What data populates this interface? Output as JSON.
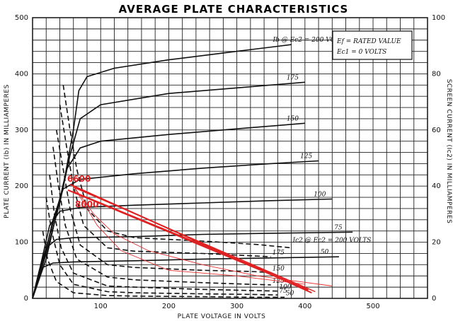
{
  "chart_data": {
    "type": "line",
    "title": "AVERAGE PLATE CHARACTERISTICS",
    "xlabel": "PLATE VOLTAGE IN VOLTS",
    "ylabel_left": "PLATE CURRENT (Ib) IN MILLIAMPERES",
    "ylabel_right": "SCREEN CURRENT (Ic2) IN MILLIAMPERES",
    "xlim": [
      0,
      580
    ],
    "ylim_left": [
      0,
      500
    ],
    "ylim_right": [
      0,
      100
    ],
    "x_ticks": [
      "100",
      "200",
      "300",
      "400",
      "500"
    ],
    "y_ticks_left": [
      "0",
      "100",
      "200",
      "300",
      "400",
      "500"
    ],
    "y_ticks_right": [
      "0",
      "20",
      "40",
      "60",
      "80",
      "100"
    ],
    "legend": [
      "Ef = RATED VALUE",
      "Ec1 = 0 VOLTS"
    ],
    "plate_curves": [
      {
        "label": "Ib @ Ec2 = 200 VOLTS",
        "points": [
          [
            0,
            0
          ],
          [
            20,
            90
          ],
          [
            45,
            200
          ],
          [
            60,
            300
          ],
          [
            68,
            370
          ],
          [
            80,
            395
          ],
          [
            120,
            410
          ],
          [
            200,
            425
          ],
          [
            300,
            440
          ],
          [
            380,
            452
          ]
        ]
      },
      {
        "label": "175",
        "points": [
          [
            0,
            0
          ],
          [
            20,
            80
          ],
          [
            40,
            170
          ],
          [
            55,
            255
          ],
          [
            70,
            320
          ],
          [
            100,
            345
          ],
          [
            200,
            365
          ],
          [
            300,
            375
          ],
          [
            400,
            385
          ]
        ]
      },
      {
        "label": "150",
        "points": [
          [
            0,
            0
          ],
          [
            20,
            70
          ],
          [
            35,
            150
          ],
          [
            50,
            230
          ],
          [
            70,
            268
          ],
          [
            100,
            280
          ],
          [
            200,
            292
          ],
          [
            300,
            302
          ],
          [
            400,
            312
          ]
        ]
      },
      {
        "label": "125",
        "points": [
          [
            0,
            0
          ],
          [
            15,
            60
          ],
          [
            30,
            140
          ],
          [
            45,
            195
          ],
          [
            70,
            212
          ],
          [
            150,
            222
          ],
          [
            250,
            232
          ],
          [
            350,
            240
          ],
          [
            420,
            245
          ]
        ]
      },
      {
        "label": "100",
        "points": [
          [
            0,
            0
          ],
          [
            12,
            60
          ],
          [
            25,
            130
          ],
          [
            40,
            155
          ],
          [
            70,
            162
          ],
          [
            150,
            166
          ],
          [
            250,
            170
          ],
          [
            350,
            174
          ],
          [
            440,
            177
          ]
        ]
      },
      {
        "label": "75",
        "points": [
          [
            0,
            0
          ],
          [
            10,
            50
          ],
          [
            20,
            90
          ],
          [
            35,
            105
          ],
          [
            60,
            108
          ],
          [
            150,
            110
          ],
          [
            250,
            114
          ],
          [
            350,
            116
          ],
          [
            470,
            118
          ]
        ]
      },
      {
        "label": "50",
        "points": [
          [
            0,
            0
          ],
          [
            8,
            35
          ],
          [
            15,
            55
          ],
          [
            30,
            63
          ],
          [
            60,
            65
          ],
          [
            150,
            67
          ],
          [
            250,
            70
          ],
          [
            350,
            72
          ],
          [
            450,
            74
          ]
        ]
      }
    ],
    "screen_curves": [
      {
        "label": "Ic2 @ Ec2 = 200 VOLTS",
        "points": [
          [
            45,
            380
          ],
          [
            55,
            300
          ],
          [
            65,
            230
          ],
          [
            80,
            160
          ],
          [
            110,
            120
          ],
          [
            150,
            108
          ],
          [
            250,
            102
          ],
          [
            330,
            96
          ],
          [
            380,
            90
          ]
        ]
      },
      {
        "label": "175",
        "points": [
          [
            40,
            345
          ],
          [
            50,
            270
          ],
          [
            60,
            200
          ],
          [
            75,
            130
          ],
          [
            110,
            90
          ],
          [
            150,
            84
          ],
          [
            250,
            80
          ],
          [
            320,
            76
          ],
          [
            350,
            74
          ]
        ]
      },
      {
        "label": "150",
        "points": [
          [
            35,
            300
          ],
          [
            45,
            230
          ],
          [
            55,
            160
          ],
          [
            70,
            95
          ],
          [
            110,
            60
          ],
          [
            150,
            55
          ],
          [
            250,
            50
          ],
          [
            320,
            48
          ],
          [
            350,
            46
          ]
        ]
      },
      {
        "label": "125",
        "points": [
          [
            30,
            270
          ],
          [
            38,
            200
          ],
          [
            48,
            130
          ],
          [
            65,
            70
          ],
          [
            110,
            38
          ],
          [
            150,
            33
          ],
          [
            250,
            28
          ],
          [
            320,
            25
          ],
          [
            350,
            24
          ]
        ]
      },
      {
        "label": "100",
        "points": [
          [
            25,
            220
          ],
          [
            32,
            150
          ],
          [
            42,
            90
          ],
          [
            60,
            45
          ],
          [
            110,
            22
          ],
          [
            150,
            20
          ],
          [
            250,
            16
          ],
          [
            320,
            14
          ],
          [
            360,
            13
          ]
        ]
      },
      {
        "label": "75",
        "points": [
          [
            20,
            180
          ],
          [
            28,
            120
          ],
          [
            40,
            60
          ],
          [
            60,
            25
          ],
          [
            110,
            12
          ],
          [
            150,
            10
          ],
          [
            250,
            8
          ],
          [
            320,
            7
          ],
          [
            360,
            6
          ]
        ]
      },
      {
        "label": "50",
        "points": [
          [
            15,
            120
          ],
          [
            22,
            70
          ],
          [
            35,
            30
          ],
          [
            60,
            10
          ],
          [
            110,
            5
          ],
          [
            150,
            4
          ],
          [
            250,
            3
          ],
          [
            320,
            2
          ],
          [
            370,
            2
          ]
        ]
      }
    ],
    "load_lines": [
      {
        "label": "6600",
        "points": [
          [
            55,
            203
          ],
          [
            410,
            10
          ]
        ]
      },
      {
        "label": "8000",
        "points": [
          [
            52,
            193
          ],
          [
            405,
            15
          ]
        ]
      }
    ],
    "extra_load_lines": [
      {
        "points": [
          [
            60,
            190
          ],
          [
            400,
            20
          ]
        ]
      },
      {
        "points": [
          [
            60,
            198
          ],
          [
            415,
            12
          ]
        ]
      }
    ],
    "trace_curves": [
      {
        "points": [
          [
            60,
            200
          ],
          [
            90,
            150
          ],
          [
            120,
            115
          ],
          [
            170,
            85
          ],
          [
            250,
            60
          ],
          [
            330,
            40
          ],
          [
            440,
            22
          ]
        ]
      },
      {
        "points": [
          [
            60,
            200
          ],
          [
            95,
            130
          ],
          [
            130,
            85
          ],
          [
            200,
            50
          ],
          [
            300,
            40
          ],
          [
            400,
            25
          ]
        ]
      }
    ],
    "grid": true,
    "legend_placement": "top-right"
  },
  "colors": {
    "grid": "#222222",
    "curve": "#111111",
    "load_line": "#e02020",
    "trace": "#e83030"
  }
}
